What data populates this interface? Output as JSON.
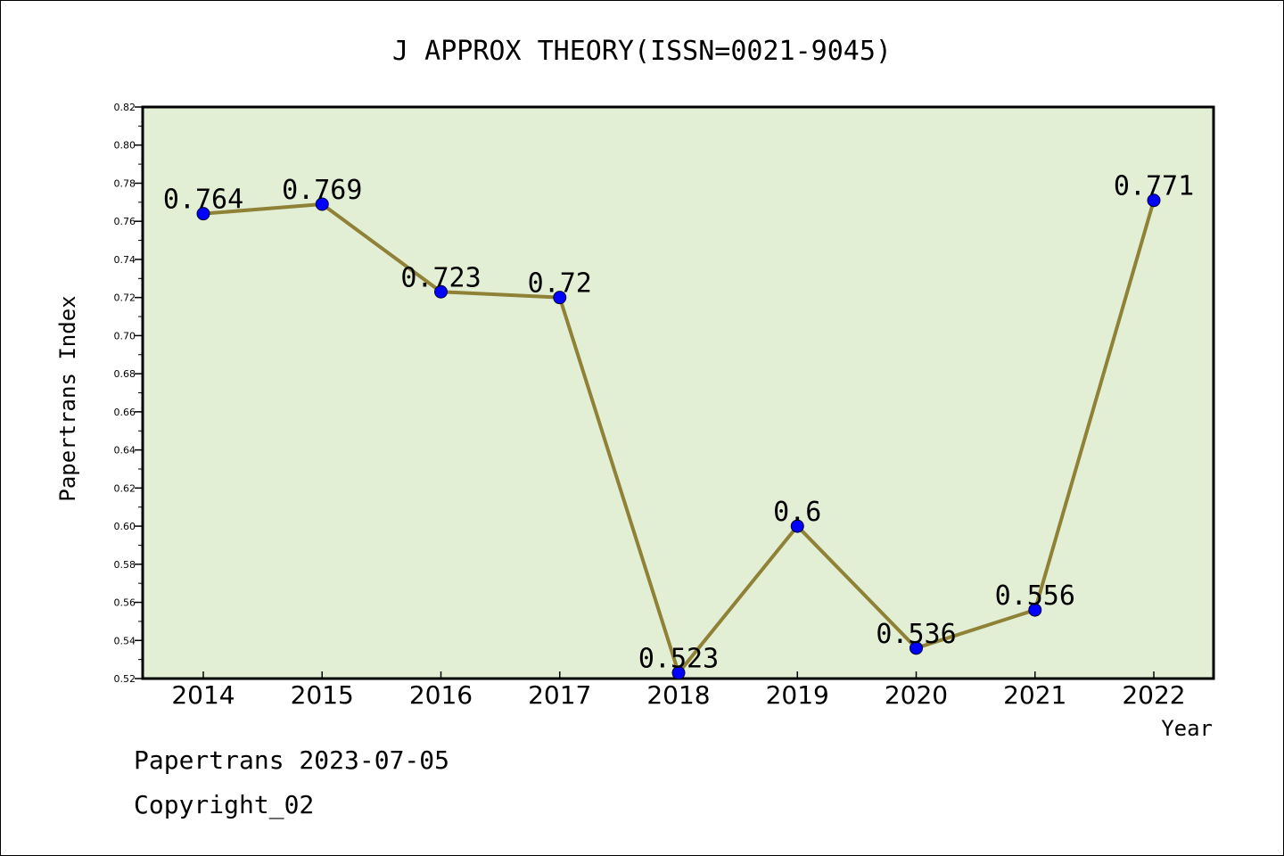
{
  "chart_data": {
    "type": "line",
    "title": "J APPROX THEORY(ISSN=0021-9045)",
    "xlabel": "Year",
    "ylabel": "Papertrans Index",
    "categories": [
      "2014",
      "2015",
      "2016",
      "2017",
      "2018",
      "2019",
      "2020",
      "2021",
      "2022"
    ],
    "series": [
      {
        "values": [
          0.764,
          0.769,
          0.723,
          0.72,
          0.523,
          0.6,
          0.536,
          0.556,
          0.771
        ],
        "labels": [
          "0.764",
          "0.769",
          "0.723",
          "0.72",
          "0.523",
          "0.6",
          "0.536",
          "0.556",
          "0.771"
        ]
      }
    ],
    "ylim": [
      0.52,
      0.82
    ],
    "yticks": [
      "0.52",
      "0.54",
      "0.56",
      "0.58",
      "0.60",
      "0.62",
      "0.64",
      "0.66",
      "0.68",
      "0.70",
      "0.72",
      "0.74",
      "0.76",
      "0.78",
      "0.80",
      "0.82"
    ],
    "grid": false,
    "colors": {
      "plot_background": "#e2efd5",
      "line": "#8f8136",
      "marker": "#0000ff"
    }
  },
  "footer": {
    "line1": "Papertrans 2023-07-05",
    "line2": "Copyright_02"
  }
}
